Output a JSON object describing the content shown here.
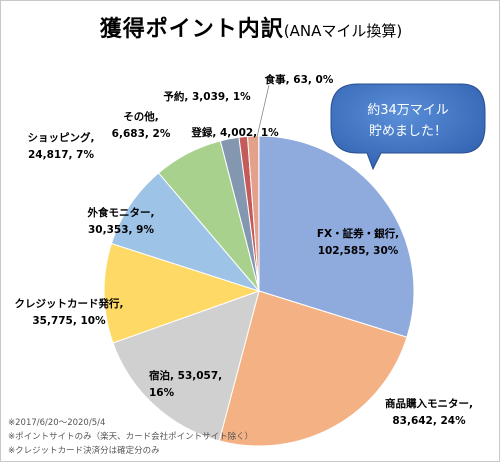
{
  "title": {
    "main": "獲得ポイント内訳",
    "sub": "(ANAマイル換算)"
  },
  "callout": {
    "line1": "約34万マイル",
    "line2": "貯めました！"
  },
  "notes": [
    "※2017/6/20〜2020/5/4",
    "※ポイントサイトのみ（楽天、カード会社ポイントサイト除く）",
    "※クレジットカード決済分は確定分のみ"
  ],
  "chart_data": {
    "type": "pie",
    "title": "獲得ポイント内訳(ANAマイル換算)",
    "slices": [
      {
        "name": "FX・証券・銀行",
        "value": 102585,
        "percent": "30%",
        "color": "#8faadc"
      },
      {
        "name": "商品購入モニター",
        "value": 83642,
        "percent": "24%",
        "color": "#f4b183"
      },
      {
        "name": "宿泊",
        "value": 53057,
        "percent": "16%",
        "color": "#d0d0d0"
      },
      {
        "name": "クレジットカード発行",
        "value": 35775,
        "percent": "10%",
        "color": "#ffd966"
      },
      {
        "name": "外食モニター",
        "value": 30353,
        "percent": "9%",
        "color": "#9dc3e6"
      },
      {
        "name": "ショッピング",
        "value": 24817,
        "percent": "7%",
        "color": "#a9d18e"
      },
      {
        "name": "その他",
        "value": 6683,
        "percent": "2%",
        "color": "#8497b0"
      },
      {
        "name": "予約",
        "value": 3039,
        "percent": "1%",
        "color": "#c55a5a"
      },
      {
        "name": "登録",
        "value": 4002,
        "percent": "1%",
        "color": "#e3a08a"
      },
      {
        "name": "食事",
        "value": 63,
        "percent": "0%",
        "color": "#bdd7ee"
      }
    ],
    "labels": [
      {
        "lines": [
          "FX・証券・銀行,",
          "102,585, 30%"
        ]
      },
      {
        "lines": [
          "商品購入モニター,",
          "83,642, 24%"
        ]
      },
      {
        "lines": [
          "宿泊, 53,057,",
          "16%"
        ]
      },
      {
        "lines": [
          "クレジットカード発行,",
          "35,775, 10%"
        ]
      },
      {
        "lines": [
          "外食モニター,",
          "30,353, 9%"
        ]
      },
      {
        "lines": [
          "ショッピング,",
          "24,817, 7%"
        ]
      },
      {
        "lines": [
          "その他,",
          "6,683, 2%"
        ]
      },
      {
        "lines": [
          "予約, 3,039, 1%"
        ]
      },
      {
        "lines": [
          "登録, 4,002, 1%"
        ]
      },
      {
        "lines": [
          "食事, 63, 0%"
        ]
      }
    ]
  }
}
